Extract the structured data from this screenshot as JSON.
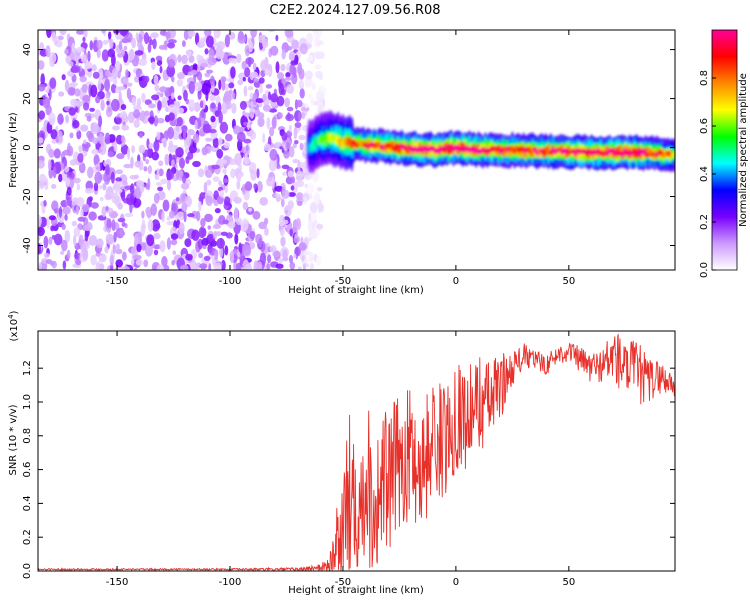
{
  "figure_title": "C2E2.2024.127.09.56.R08",
  "chart_data": [
    {
      "type": "heatmap",
      "title": "C2E2.2024.127.09.56.R08",
      "xlabel": "Height of straight line (km)",
      "ylabel": "Frequency (Hz)",
      "xlim": [
        -185,
        97
      ],
      "ylim": [
        -50,
        48
      ],
      "xticks": [
        -150,
        -100,
        -50,
        0,
        50
      ],
      "yticks": [
        -40,
        -20,
        0,
        20,
        40
      ],
      "xtick_labels": [
        "-150",
        "-100",
        "-50",
        "0",
        "50"
      ],
      "ytick_labels": [
        "-40",
        "-20",
        "0",
        "20",
        "40"
      ],
      "grid": false,
      "noise_region": {
        "x": [
          -185,
          -63
        ],
        "y": [
          -50,
          48
        ]
      },
      "ridge": {
        "x": [
          -65,
          -60,
          -55,
          -50,
          -40,
          -30,
          -20,
          -10,
          0,
          10,
          20,
          40,
          60,
          80,
          97
        ],
        "freq": [
          0,
          3,
          4,
          2,
          1,
          0.5,
          -0.5,
          -1,
          0,
          -1,
          -1,
          -1.5,
          -2,
          -2,
          -3
        ],
        "amplitude": [
          0.3,
          0.45,
          0.5,
          0.6,
          0.8,
          0.85,
          0.9,
          0.95,
          0.95,
          0.9,
          0.85,
          0.85,
          0.9,
          0.95,
          0.6
        ]
      },
      "colorbar": {
        "label": "Normalized spectral amplitude",
        "range": [
          0,
          1
        ],
        "ticks": [
          0.0,
          0.2,
          0.4,
          0.6,
          0.8
        ],
        "tick_labels": [
          "0.0",
          "0.2",
          "0.4",
          "0.6",
          "0.8"
        ],
        "colors": [
          "#ffffff",
          "#cc99ff",
          "#7700ff",
          "#0000ff",
          "#00ffff",
          "#00ff00",
          "#ffff00",
          "#ff8800",
          "#ff0000",
          "#ff0099"
        ]
      }
    },
    {
      "type": "line",
      "xlabel": "Height of straight line (km)",
      "ylabel": "SNR (10 * v/v)",
      "yscale_label": "(x10",
      "yscale_exponent": "4",
      "yscale_suffix": ")",
      "xlim": [
        -185,
        97
      ],
      "ylim": [
        0,
        1.42
      ],
      "xticks": [
        -150,
        -100,
        -50,
        0,
        50
      ],
      "yticks": [
        0.0,
        0.2,
        0.4,
        0.6,
        0.8,
        1.0,
        1.2
      ],
      "xtick_labels": [
        "-150",
        "-100",
        "-50",
        "0",
        "50"
      ],
      "ytick_labels": [
        "0.0",
        "0.2",
        "0.4",
        "0.6",
        "0.8",
        "1.0",
        "1.2"
      ],
      "grid": false,
      "series": [
        {
          "color": "#e8302a",
          "x": [
            -185,
            -150,
            -100,
            -70,
            -60,
            -55,
            -52,
            -50,
            -47,
            -45,
            -42,
            -40,
            -38,
            -35,
            -33,
            -30,
            -25,
            -20,
            -15,
            -10,
            -5,
            0,
            5,
            10,
            15,
            20,
            25,
            30,
            35,
            40,
            45,
            50,
            55,
            60,
            65,
            70,
            75,
            80,
            85,
            90,
            97
          ],
          "y": [
            0.01,
            0.01,
            0.01,
            0.01,
            0.02,
            0.05,
            0.15,
            0.25,
            0.4,
            0.55,
            0.35,
            0.6,
            0.5,
            0.3,
            0.55,
            0.5,
            0.65,
            0.7,
            0.6,
            0.8,
            0.75,
            0.95,
            0.9,
            1.0,
            1.0,
            1.1,
            1.2,
            1.27,
            1.25,
            1.22,
            1.28,
            1.3,
            1.25,
            1.2,
            1.22,
            1.27,
            1.2,
            1.18,
            1.12,
            1.15,
            1.1
          ],
          "spread": [
            0.005,
            0.005,
            0.005,
            0.01,
            0.02,
            0.1,
            0.3,
            0.5,
            0.55,
            0.45,
            0.5,
            0.45,
            0.5,
            0.5,
            0.45,
            0.45,
            0.4,
            0.4,
            0.4,
            0.35,
            0.35,
            0.35,
            0.3,
            0.3,
            0.25,
            0.2,
            0.1,
            0.08,
            0.06,
            0.06,
            0.06,
            0.06,
            0.08,
            0.1,
            0.1,
            0.2,
            0.15,
            0.2,
            0.15,
            0.1,
            0.08
          ]
        }
      ]
    }
  ]
}
